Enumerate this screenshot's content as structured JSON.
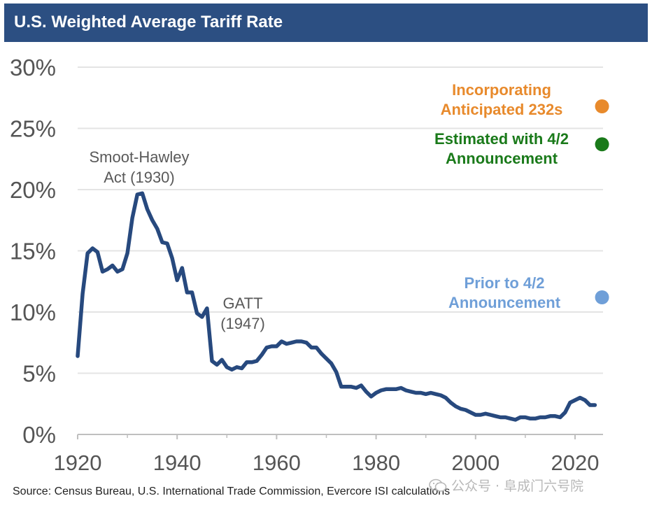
{
  "title": "U.S. Weighted Average Tariff Rate",
  "source": "Source: Census Bureau, U.S. International Trade Commission, Evercore ISI calculations",
  "watermark": "公众号 · 阜成门六号院",
  "chart_data": {
    "type": "line",
    "xlim": [
      1920,
      2027
    ],
    "ylim": [
      0,
      30
    ],
    "x_ticks": [
      {
        "value": 1920,
        "label": "1920"
      },
      {
        "value": 1940,
        "label": "1940"
      },
      {
        "value": 1960,
        "label": "1960"
      },
      {
        "value": 1980,
        "label": "1980"
      },
      {
        "value": 2000,
        "label": "2000"
      },
      {
        "value": 2020,
        "label": "2020"
      }
    ],
    "y_ticks": [
      {
        "value": 0,
        "label": "0%"
      },
      {
        "value": 5,
        "label": "5%"
      },
      {
        "value": 10,
        "label": "10%"
      },
      {
        "value": 15,
        "label": "15%"
      },
      {
        "value": 20,
        "label": "20%"
      },
      {
        "value": 25,
        "label": "25%"
      },
      {
        "value": 30,
        "label": "30%"
      }
    ],
    "grid": true,
    "line_color": "#27497e",
    "series": [
      {
        "x": [
          1920,
          1921,
          1922,
          1923,
          1924,
          1925,
          1926,
          1927,
          1928,
          1929,
          1930,
          1931,
          1932,
          1933,
          1934,
          1935,
          1936,
          1937,
          1938,
          1939,
          1940,
          1941,
          1942,
          1943,
          1944,
          1945,
          1946,
          1947,
          1948,
          1949,
          1950,
          1951,
          1952,
          1953,
          1954,
          1955,
          1956,
          1957,
          1958,
          1959,
          1960,
          1961,
          1962,
          1963,
          1964,
          1965,
          1966,
          1967,
          1968,
          1969,
          1970,
          1971,
          1972,
          1973,
          1974,
          1975,
          1976,
          1977,
          1978,
          1979,
          1980,
          1981,
          1982,
          1983,
          1984,
          1985,
          1986,
          1987,
          1988,
          1989,
          1990,
          1991,
          1992,
          1993,
          1994,
          1995,
          1996,
          1997,
          1998,
          1999,
          2000,
          2001,
          2002,
          2003,
          2004,
          2005,
          2006,
          2007,
          2008,
          2009,
          2010,
          2011,
          2012,
          2013,
          2014,
          2015,
          2016,
          2017,
          2018,
          2019,
          2020,
          2021,
          2022,
          2023,
          2024
        ],
        "values": [
          6.4,
          11.5,
          14.8,
          15.2,
          14.9,
          13.3,
          13.5,
          13.8,
          13.3,
          13.5,
          14.8,
          17.7,
          19.6,
          19.7,
          18.4,
          17.5,
          16.8,
          15.7,
          15.6,
          14.4,
          12.6,
          13.6,
          11.6,
          11.6,
          9.9,
          9.6,
          10.3,
          6.0,
          5.7,
          6.1,
          5.5,
          5.3,
          5.5,
          5.4,
          5.9,
          5.9,
          6.0,
          6.5,
          7.1,
          7.2,
          7.2,
          7.6,
          7.4,
          7.5,
          7.6,
          7.6,
          7.5,
          7.1,
          7.1,
          6.6,
          6.2,
          5.8,
          5.1,
          3.9,
          3.9,
          3.9,
          3.8,
          4.0,
          3.5,
          3.1,
          3.4,
          3.6,
          3.7,
          3.7,
          3.7,
          3.8,
          3.6,
          3.5,
          3.4,
          3.4,
          3.3,
          3.4,
          3.3,
          3.2,
          3.0,
          2.6,
          2.3,
          2.1,
          2.0,
          1.8,
          1.6,
          1.6,
          1.7,
          1.6,
          1.5,
          1.4,
          1.4,
          1.3,
          1.2,
          1.4,
          1.4,
          1.3,
          1.3,
          1.4,
          1.4,
          1.5,
          1.5,
          1.4,
          1.8,
          2.6,
          2.8,
          3.0,
          2.8,
          2.4,
          2.4
        ]
      }
    ],
    "points": [
      {
        "label_lines": [
          "Incorporating",
          "Anticipated 232s"
        ],
        "x": 2025,
        "value": 26.8,
        "color": "#e88a2c"
      },
      {
        "label_lines": [
          "Estimated with 4/2",
          "Announcement"
        ],
        "x": 2025,
        "value": 23.7,
        "color": "#1a7a1a"
      },
      {
        "label_lines": [
          "Prior to 4/2",
          "Announcement"
        ],
        "x": 2025,
        "value": 11.2,
        "color": "#6f9fd8"
      }
    ],
    "annotations": [
      {
        "lines": [
          "Smoot-Hawley",
          "Act (1930)"
        ],
        "color": "#595959"
      },
      {
        "lines": [
          "GATT",
          "(1947)"
        ],
        "color": "#595959"
      }
    ]
  }
}
